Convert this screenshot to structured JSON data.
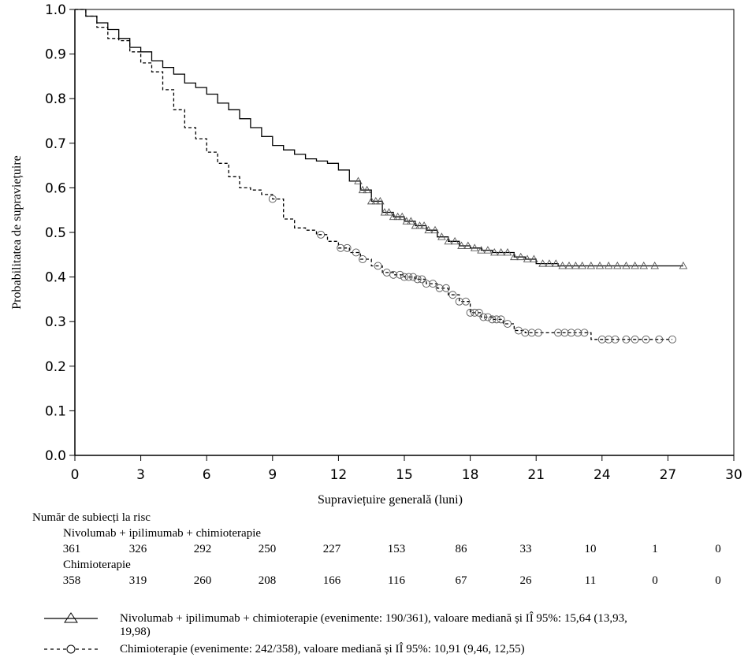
{
  "chart_data": {
    "type": "line",
    "subtype": "kaplan-meier",
    "xlabel": "Supraviețuire generală (luni)",
    "ylabel": "Probabilitatea de supraviețuire",
    "xlim": [
      0,
      30
    ],
    "ylim": [
      0,
      1
    ],
    "x_ticks": [
      "0",
      "3",
      "6",
      "9",
      "12",
      "15",
      "18",
      "21",
      "24",
      "27",
      "30"
    ],
    "y_ticks": [
      "0.0",
      "0.1",
      "0.2",
      "0.3",
      "0.4",
      "0.5",
      "0.6",
      "0.7",
      "0.8",
      "0.9",
      "1.0"
    ],
    "grid": false,
    "series": [
      {
        "name": "Nivolumab + ipilimumab + chimioterapie",
        "line_style": "solid",
        "marker": "triangle",
        "x": [
          0,
          0.5,
          1,
          1.5,
          2,
          2.5,
          3,
          3.5,
          4,
          4.5,
          5,
          5.5,
          6,
          6.5,
          7,
          7.5,
          8,
          8.5,
          9,
          9.5,
          10,
          10.5,
          11,
          11.5,
          12,
          12.5,
          13,
          13.5,
          14,
          14.5,
          15,
          15.5,
          16,
          16.5,
          17,
          17.5,
          18,
          18.5,
          19,
          19.5,
          20,
          20.5,
          21,
          22,
          23,
          24,
          25,
          26,
          27,
          27.7
        ],
        "y": [
          1.0,
          0.985,
          0.97,
          0.955,
          0.935,
          0.915,
          0.905,
          0.885,
          0.87,
          0.855,
          0.835,
          0.825,
          0.81,
          0.79,
          0.775,
          0.755,
          0.735,
          0.715,
          0.695,
          0.685,
          0.675,
          0.665,
          0.66,
          0.655,
          0.64,
          0.615,
          0.595,
          0.57,
          0.545,
          0.535,
          0.525,
          0.515,
          0.505,
          0.49,
          0.48,
          0.47,
          0.465,
          0.46,
          0.455,
          0.455,
          0.445,
          0.44,
          0.43,
          0.425,
          0.425,
          0.425,
          0.425,
          0.425,
          0.425,
          0.425
        ],
        "censored_x": [
          12.9,
          13.1,
          13.3,
          13.5,
          13.7,
          13.9,
          14.1,
          14.3,
          14.5,
          14.7,
          14.9,
          15.1,
          15.3,
          15.5,
          15.7,
          15.9,
          16.1,
          16.4,
          16.7,
          17.0,
          17.3,
          17.6,
          17.9,
          18.2,
          18.5,
          18.8,
          19.1,
          19.4,
          19.7,
          20.0,
          20.3,
          20.6,
          20.9,
          21.3,
          21.6,
          21.9,
          22.2,
          22.5,
          22.8,
          23.1,
          23.5,
          23.9,
          24.3,
          24.7,
          25.1,
          25.5,
          25.9,
          26.4,
          27.7
        ]
      },
      {
        "name": "Chimioterapie",
        "line_style": "dashed",
        "marker": "circle",
        "x": [
          0,
          0.5,
          1,
          1.5,
          2,
          2.5,
          3,
          3.5,
          4,
          4.5,
          5,
          5.5,
          6,
          6.5,
          7,
          7.5,
          8,
          8.5,
          9,
          9.5,
          10,
          10.5,
          11,
          11.5,
          12,
          12.5,
          13,
          13.5,
          14,
          14.5,
          15,
          15.5,
          16,
          16.5,
          17,
          17.5,
          18,
          18.5,
          19,
          19.5,
          20,
          20.5,
          21,
          22,
          23,
          23.5,
          24,
          25,
          26,
          27.2
        ],
        "y": [
          1.0,
          0.985,
          0.96,
          0.935,
          0.93,
          0.905,
          0.88,
          0.86,
          0.82,
          0.775,
          0.735,
          0.71,
          0.68,
          0.655,
          0.625,
          0.6,
          0.595,
          0.585,
          0.575,
          0.53,
          0.51,
          0.505,
          0.495,
          0.48,
          0.465,
          0.455,
          0.44,
          0.425,
          0.41,
          0.405,
          0.4,
          0.395,
          0.385,
          0.375,
          0.36,
          0.345,
          0.32,
          0.31,
          0.305,
          0.295,
          0.28,
          0.275,
          0.275,
          0.275,
          0.275,
          0.26,
          0.26,
          0.26,
          0.26,
          0.26
        ],
        "censored_x": [
          9.0,
          11.2,
          12.1,
          12.4,
          12.8,
          13.1,
          13.8,
          14.2,
          14.5,
          14.8,
          15.0,
          15.2,
          15.4,
          15.6,
          15.8,
          16.0,
          16.3,
          16.6,
          16.9,
          17.2,
          17.5,
          17.8,
          18.0,
          18.2,
          18.4,
          18.6,
          18.8,
          19.0,
          19.2,
          19.4,
          19.7,
          20.2,
          20.5,
          20.8,
          21.1,
          22.0,
          22.3,
          22.6,
          22.9,
          23.2,
          24.0,
          24.3,
          24.6,
          25.1,
          25.5,
          26.0,
          26.6,
          27.2
        ]
      }
    ],
    "risk_table": {
      "title": "Număr de subiecți la risc",
      "time_points": [
        0,
        3,
        6,
        9,
        12,
        15,
        18,
        21,
        24,
        27,
        30
      ],
      "groups": [
        {
          "label": "Nivolumab + ipilimumab + chimioterapie",
          "counts": [
            "361",
            "326",
            "292",
            "250",
            "227",
            "153",
            "86",
            "33",
            "10",
            "1",
            "0"
          ]
        },
        {
          "label": "Chimioterapie",
          "counts": [
            "358",
            "319",
            "260",
            "208",
            "166",
            "116",
            "67",
            "26",
            "11",
            "0",
            "0"
          ]
        }
      ]
    },
    "legend": {
      "placement": "bottom",
      "entries": [
        {
          "line_style": "solid",
          "marker": "triangle",
          "text_line1": "Nivolumab + ipilimumab + chimioterapie (evenimente: 190/361), valoare mediană și IÎ 95%: 15,64 (13,93,",
          "text_line2": "19,98)"
        },
        {
          "line_style": "dashed",
          "marker": "circle",
          "text_line1": "Chimioterapie (evenimente: 242/358), valoare mediană și IÎ 95%: 10,91 (9,46, 12,55)"
        }
      ]
    }
  }
}
